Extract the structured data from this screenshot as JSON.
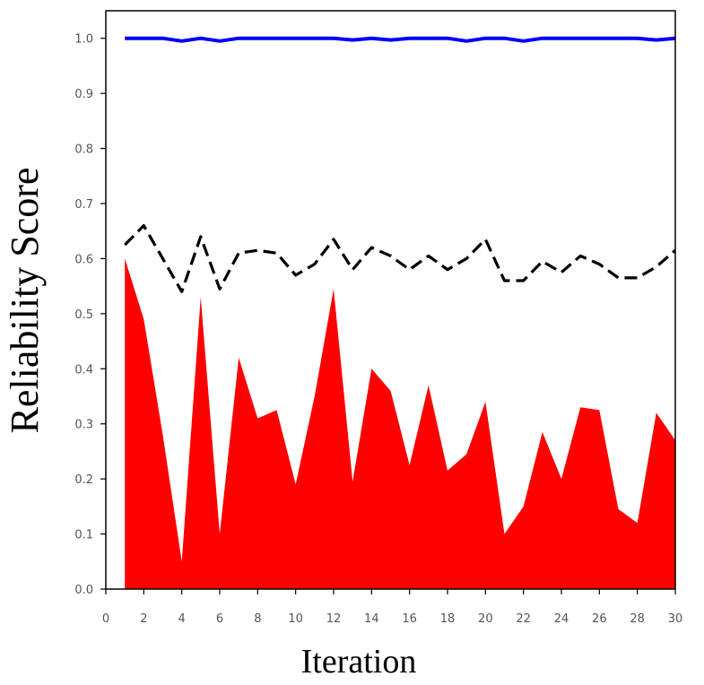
{
  "chart_data": {
    "type": "area",
    "xlabel": "Iteration",
    "ylabel": "Reliability Score",
    "xlim": [
      0,
      30
    ],
    "ylim": [
      0.0,
      1.05
    ],
    "x_ticks": [
      "0",
      "2",
      "4",
      "6",
      "8",
      "10",
      "12",
      "14",
      "16",
      "18",
      "20",
      "22",
      "24",
      "26",
      "28",
      "30"
    ],
    "y_ticks": [
      "0.0",
      "0.1",
      "0.2",
      "0.3",
      "0.4",
      "0.5",
      "0.6",
      "0.7",
      "0.8",
      "0.9",
      "1.0"
    ],
    "grid": false,
    "x": [
      1,
      2,
      3,
      4,
      5,
      6,
      7,
      8,
      9,
      10,
      11,
      12,
      13,
      14,
      15,
      16,
      17,
      18,
      19,
      20,
      21,
      22,
      23,
      24,
      25,
      26,
      27,
      28,
      29,
      30
    ],
    "series": [
      {
        "style": "solid-line",
        "color": "#0000ff",
        "values": [
          1.0,
          1.0,
          1.0,
          0.995,
          1.0,
          0.995,
          1.0,
          1.0,
          1.0,
          1.0,
          1.0,
          1.0,
          0.997,
          1.0,
          0.997,
          1.0,
          1.0,
          1.0,
          0.995,
          1.0,
          1.0,
          0.995,
          1.0,
          1.0,
          1.0,
          1.0,
          1.0,
          1.0,
          0.997,
          1.0
        ]
      },
      {
        "style": "dashed-line",
        "color": "#000000",
        "values": [
          0.625,
          0.66,
          0.6,
          0.54,
          0.64,
          0.545,
          0.61,
          0.615,
          0.61,
          0.57,
          0.59,
          0.635,
          0.58,
          0.62,
          0.605,
          0.58,
          0.605,
          0.58,
          0.6,
          0.635,
          0.56,
          0.56,
          0.595,
          0.575,
          0.605,
          0.59,
          0.565,
          0.565,
          0.585,
          0.615
        ]
      },
      {
        "style": "filled-area",
        "color": "#ff0000",
        "values": [
          0.6,
          0.49,
          0.28,
          0.05,
          0.53,
          0.1,
          0.42,
          0.31,
          0.325,
          0.19,
          0.35,
          0.545,
          0.195,
          0.4,
          0.36,
          0.225,
          0.37,
          0.215,
          0.245,
          0.34,
          0.1,
          0.15,
          0.285,
          0.2,
          0.33,
          0.325,
          0.145,
          0.12,
          0.32,
          0.27
        ]
      }
    ]
  }
}
